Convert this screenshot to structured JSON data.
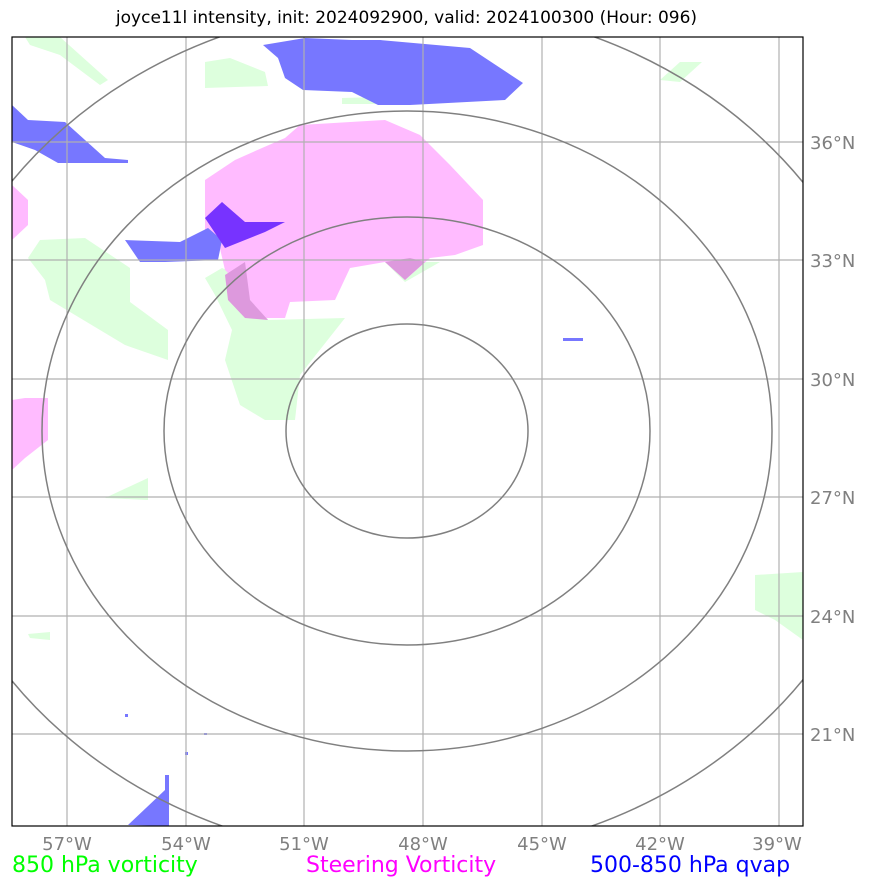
{
  "title": "joyce11l intensity, init: 2024092900, valid: 2024100300 (Hour: 096)",
  "map": {
    "lon_ticks": [
      "57°W",
      "54°W",
      "51°W",
      "48°W",
      "45°W",
      "42°W",
      "39°W"
    ],
    "lat_ticks": [
      "36°N",
      "33°N",
      "30°N",
      "27°N",
      "24°N",
      "21°N"
    ],
    "colors": {
      "vorticity_850": "#ddffdd",
      "steering_vorticity": "#ffbbff",
      "qvap": "#7777ff",
      "overlap": "#7733ff",
      "gridlines": "#b0b0b0",
      "range_rings": "#808080"
    }
  },
  "legend": {
    "vorticity_850": {
      "label": "850 hPa vorticity",
      "color": "#00ff00"
    },
    "steering": {
      "label": "Steering Vorticity",
      "color": "#ff00ff"
    },
    "qvap": {
      "label": "500-850 hPa qvap",
      "color": "#0000ff"
    }
  }
}
